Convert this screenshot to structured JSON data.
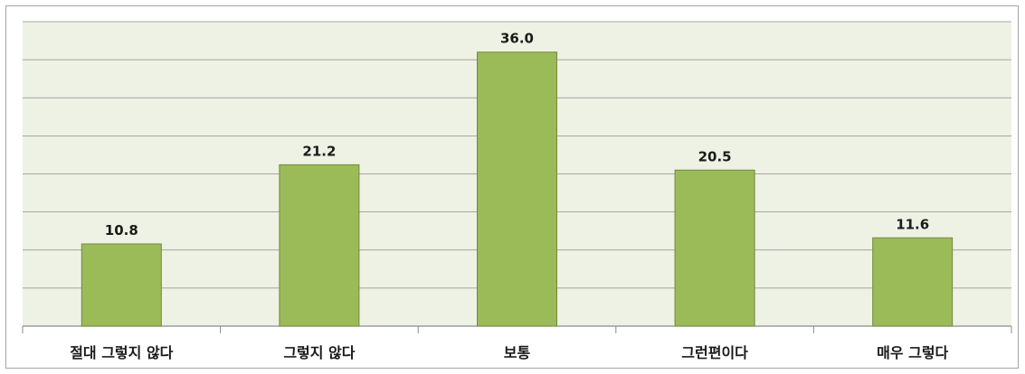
{
  "chart_data": {
    "type": "bar",
    "categories": [
      "절대 그렇지 않다",
      "그렇지 않다",
      "보통",
      "그런편이다",
      "매우 그렇다"
    ],
    "values": [
      10.8,
      21.2,
      36.0,
      20.5,
      11.6
    ],
    "value_labels": [
      "10.8",
      "21.2",
      "36.0",
      "20.5",
      "11.6"
    ],
    "ylim": [
      0,
      40
    ],
    "grid": true,
    "gridline_count": 8,
    "legend": "none",
    "colors": {
      "bar_fill": "#9bbb59",
      "bar_stroke": "#71893f",
      "plot_background": "#eef2e4",
      "gridline": "#8c8c8c"
    }
  }
}
